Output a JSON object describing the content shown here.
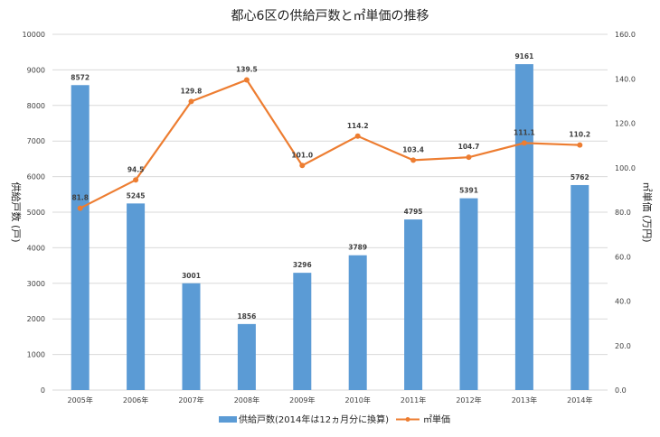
{
  "chart_data": {
    "type": "bar+line",
    "title": "都心6区の供給戸数と㎡単価の推移",
    "categories": [
      "2005年",
      "2006年",
      "2007年",
      "2008年",
      "2009年",
      "2010年",
      "2011年",
      "2012年",
      "2013年",
      "2014年"
    ],
    "series": [
      {
        "name": "供給戸数(2014年は12ヵ月分に換算)",
        "type": "bar",
        "axis": "left",
        "color": "#5B9BD5",
        "values": [
          8572,
          5245,
          3001,
          1856,
          3296,
          3789,
          4795,
          5391,
          9161,
          5762
        ],
        "labels": [
          "8572",
          "5245",
          "3001",
          "1856",
          "3296",
          "3789",
          "4795",
          "5391",
          "9161",
          "5762"
        ]
      },
      {
        "name": "㎡単価",
        "type": "line",
        "axis": "right",
        "color": "#ED7D31",
        "values": [
          81.8,
          94.5,
          129.8,
          139.5,
          101.0,
          114.2,
          103.4,
          104.7,
          111.1,
          110.2
        ],
        "labels": [
          "81.8",
          "94.5",
          "129.8",
          "139.5",
          "101.0",
          "114.2",
          "103.4",
          "104.7",
          "111.1",
          "110.2"
        ]
      }
    ],
    "ylabel": "供給戸数 (戸)",
    "ylabel_right": "㎡単価 (万円)",
    "ylim": [
      0,
      10000
    ],
    "ylim_right": [
      0,
      160
    ],
    "yticks": [
      "0",
      "1000",
      "2000",
      "3000",
      "4000",
      "5000",
      "6000",
      "7000",
      "8000",
      "9000",
      "10000"
    ],
    "yticks_right": [
      "0.0",
      "20.0",
      "40.0",
      "60.0",
      "80.0",
      "100.0",
      "120.0",
      "140.0",
      "160.0"
    ],
    "grid": true,
    "legend": "bottom"
  }
}
